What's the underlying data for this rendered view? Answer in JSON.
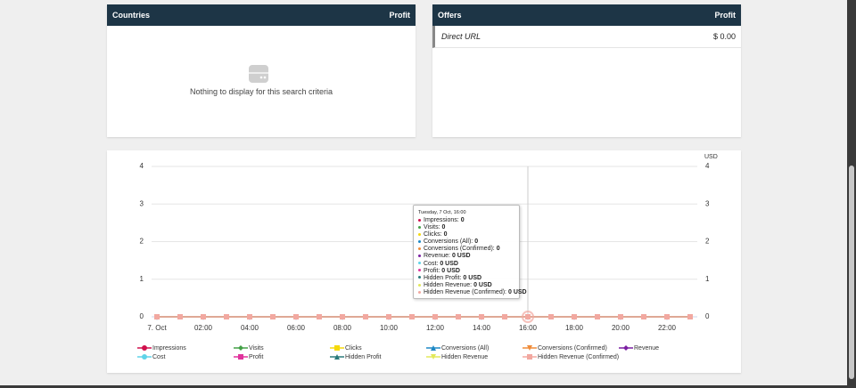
{
  "countries_panel": {
    "title": "Countries",
    "column": "Profit",
    "empty_message": "Nothing to display for this search criteria"
  },
  "offers_panel": {
    "title": "Offers",
    "column": "Profit",
    "rows": [
      [
        "Direct URL",
        "$ 0.00"
      ]
    ]
  },
  "chart_data": {
    "type": "line",
    "categories": [
      "7. Oct",
      null,
      "02:00",
      null,
      "04:00",
      null,
      "06:00",
      null,
      "08:00",
      null,
      "10:00",
      null,
      "12:00",
      null,
      "14:00",
      null,
      "16:00",
      null,
      "18:00",
      null,
      "20:00",
      null,
      "22:00",
      null
    ],
    "ylim": [
      0,
      4
    ],
    "yticks": [
      0,
      1,
      2,
      3,
      4
    ],
    "y2lim": [
      0,
      4
    ],
    "y2ticks": [
      0,
      1,
      2,
      3,
      4
    ],
    "y2_label": "USD",
    "grid": true,
    "series": [
      {
        "name": "Impressions",
        "color": "#d0104c",
        "marker": "circle",
        "values": [
          0,
          0,
          0,
          0,
          0,
          0,
          0,
          0,
          0,
          0,
          0,
          0,
          0,
          0,
          0,
          0,
          0,
          0,
          0,
          0,
          0,
          0,
          0,
          0
        ]
      },
      {
        "name": "Visits",
        "color": "#43a047",
        "marker": "diamond",
        "values": [
          0,
          0,
          0,
          0,
          0,
          0,
          0,
          0,
          0,
          0,
          0,
          0,
          0,
          0,
          0,
          0,
          0,
          0,
          0,
          0,
          0,
          0,
          0,
          0
        ]
      },
      {
        "name": "Clicks",
        "color": "#f5d90a",
        "marker": "square",
        "values": [
          0,
          0,
          0,
          0,
          0,
          0,
          0,
          0,
          0,
          0,
          0,
          0,
          0,
          0,
          0,
          0,
          0,
          0,
          0,
          0,
          0,
          0,
          0,
          0
        ]
      },
      {
        "name": "Conversions (All)",
        "color": "#1e88c5",
        "marker": "triangle",
        "values": [
          0,
          0,
          0,
          0,
          0,
          0,
          0,
          0,
          0,
          0,
          0,
          0,
          0,
          0,
          0,
          0,
          0,
          0,
          0,
          0,
          0,
          0,
          0,
          0
        ]
      },
      {
        "name": "Conversions (Confirmed)",
        "color": "#f08c3a",
        "marker": "triangle-down",
        "values": [
          0,
          0,
          0,
          0,
          0,
          0,
          0,
          0,
          0,
          0,
          0,
          0,
          0,
          0,
          0,
          0,
          0,
          0,
          0,
          0,
          0,
          0,
          0,
          0
        ]
      },
      {
        "name": "Revenue",
        "color": "#7b1fa2",
        "marker": "diamond",
        "values": [
          0,
          0,
          0,
          0,
          0,
          0,
          0,
          0,
          0,
          0,
          0,
          0,
          0,
          0,
          0,
          0,
          0,
          0,
          0,
          0,
          0,
          0,
          0,
          0
        ]
      },
      {
        "name": "Cost",
        "color": "#5fd3e8",
        "marker": "circle",
        "values": [
          0,
          0,
          0,
          0,
          0,
          0,
          0,
          0,
          0,
          0,
          0,
          0,
          0,
          0,
          0,
          0,
          0,
          0,
          0,
          0,
          0,
          0,
          0,
          0
        ]
      },
      {
        "name": "Profit",
        "color": "#e0339c",
        "marker": "square",
        "values": [
          0,
          0,
          0,
          0,
          0,
          0,
          0,
          0,
          0,
          0,
          0,
          0,
          0,
          0,
          0,
          0,
          0,
          0,
          0,
          0,
          0,
          0,
          0,
          0
        ]
      },
      {
        "name": "Hidden Profit",
        "color": "#2a7a7a",
        "marker": "triangle",
        "values": [
          0,
          0,
          0,
          0,
          0,
          0,
          0,
          0,
          0,
          0,
          0,
          0,
          0,
          0,
          0,
          0,
          0,
          0,
          0,
          0,
          0,
          0,
          0,
          0
        ]
      },
      {
        "name": "Hidden Revenue",
        "color": "#e2e85a",
        "marker": "triangle-down",
        "values": [
          0,
          0,
          0,
          0,
          0,
          0,
          0,
          0,
          0,
          0,
          0,
          0,
          0,
          0,
          0,
          0,
          0,
          0,
          0,
          0,
          0,
          0,
          0,
          0
        ]
      },
      {
        "name": "Hidden Revenue (Confirmed)",
        "color": "#f2a8a0",
        "marker": "square",
        "values": [
          0,
          0,
          0,
          0,
          0,
          0,
          0,
          0,
          0,
          0,
          0,
          0,
          0,
          0,
          0,
          0,
          0,
          0,
          0,
          0,
          0,
          0,
          0,
          0
        ]
      }
    ]
  },
  "tooltip": {
    "title": "Tuesday, 7 Oct, 16:00",
    "items": [
      {
        "label": "Impressions:",
        "value": "0"
      },
      {
        "label": "Visits:",
        "value": "0"
      },
      {
        "label": "Clicks:",
        "value": "0"
      },
      {
        "label": "Conversions (All):",
        "value": "0"
      },
      {
        "label": "Conversions (Confirmed):",
        "value": "0"
      },
      {
        "label": "Revenue:",
        "value": "0 USD"
      },
      {
        "label": "Cost:",
        "value": "0 USD"
      },
      {
        "label": "Profit:",
        "value": "0 USD"
      },
      {
        "label": "Hidden Profit:",
        "value": "0 USD"
      },
      {
        "label": "Hidden Revenue:",
        "value": "0 USD"
      },
      {
        "label": "Hidden Revenue (Confirmed):",
        "value": "0 USD"
      }
    ]
  }
}
